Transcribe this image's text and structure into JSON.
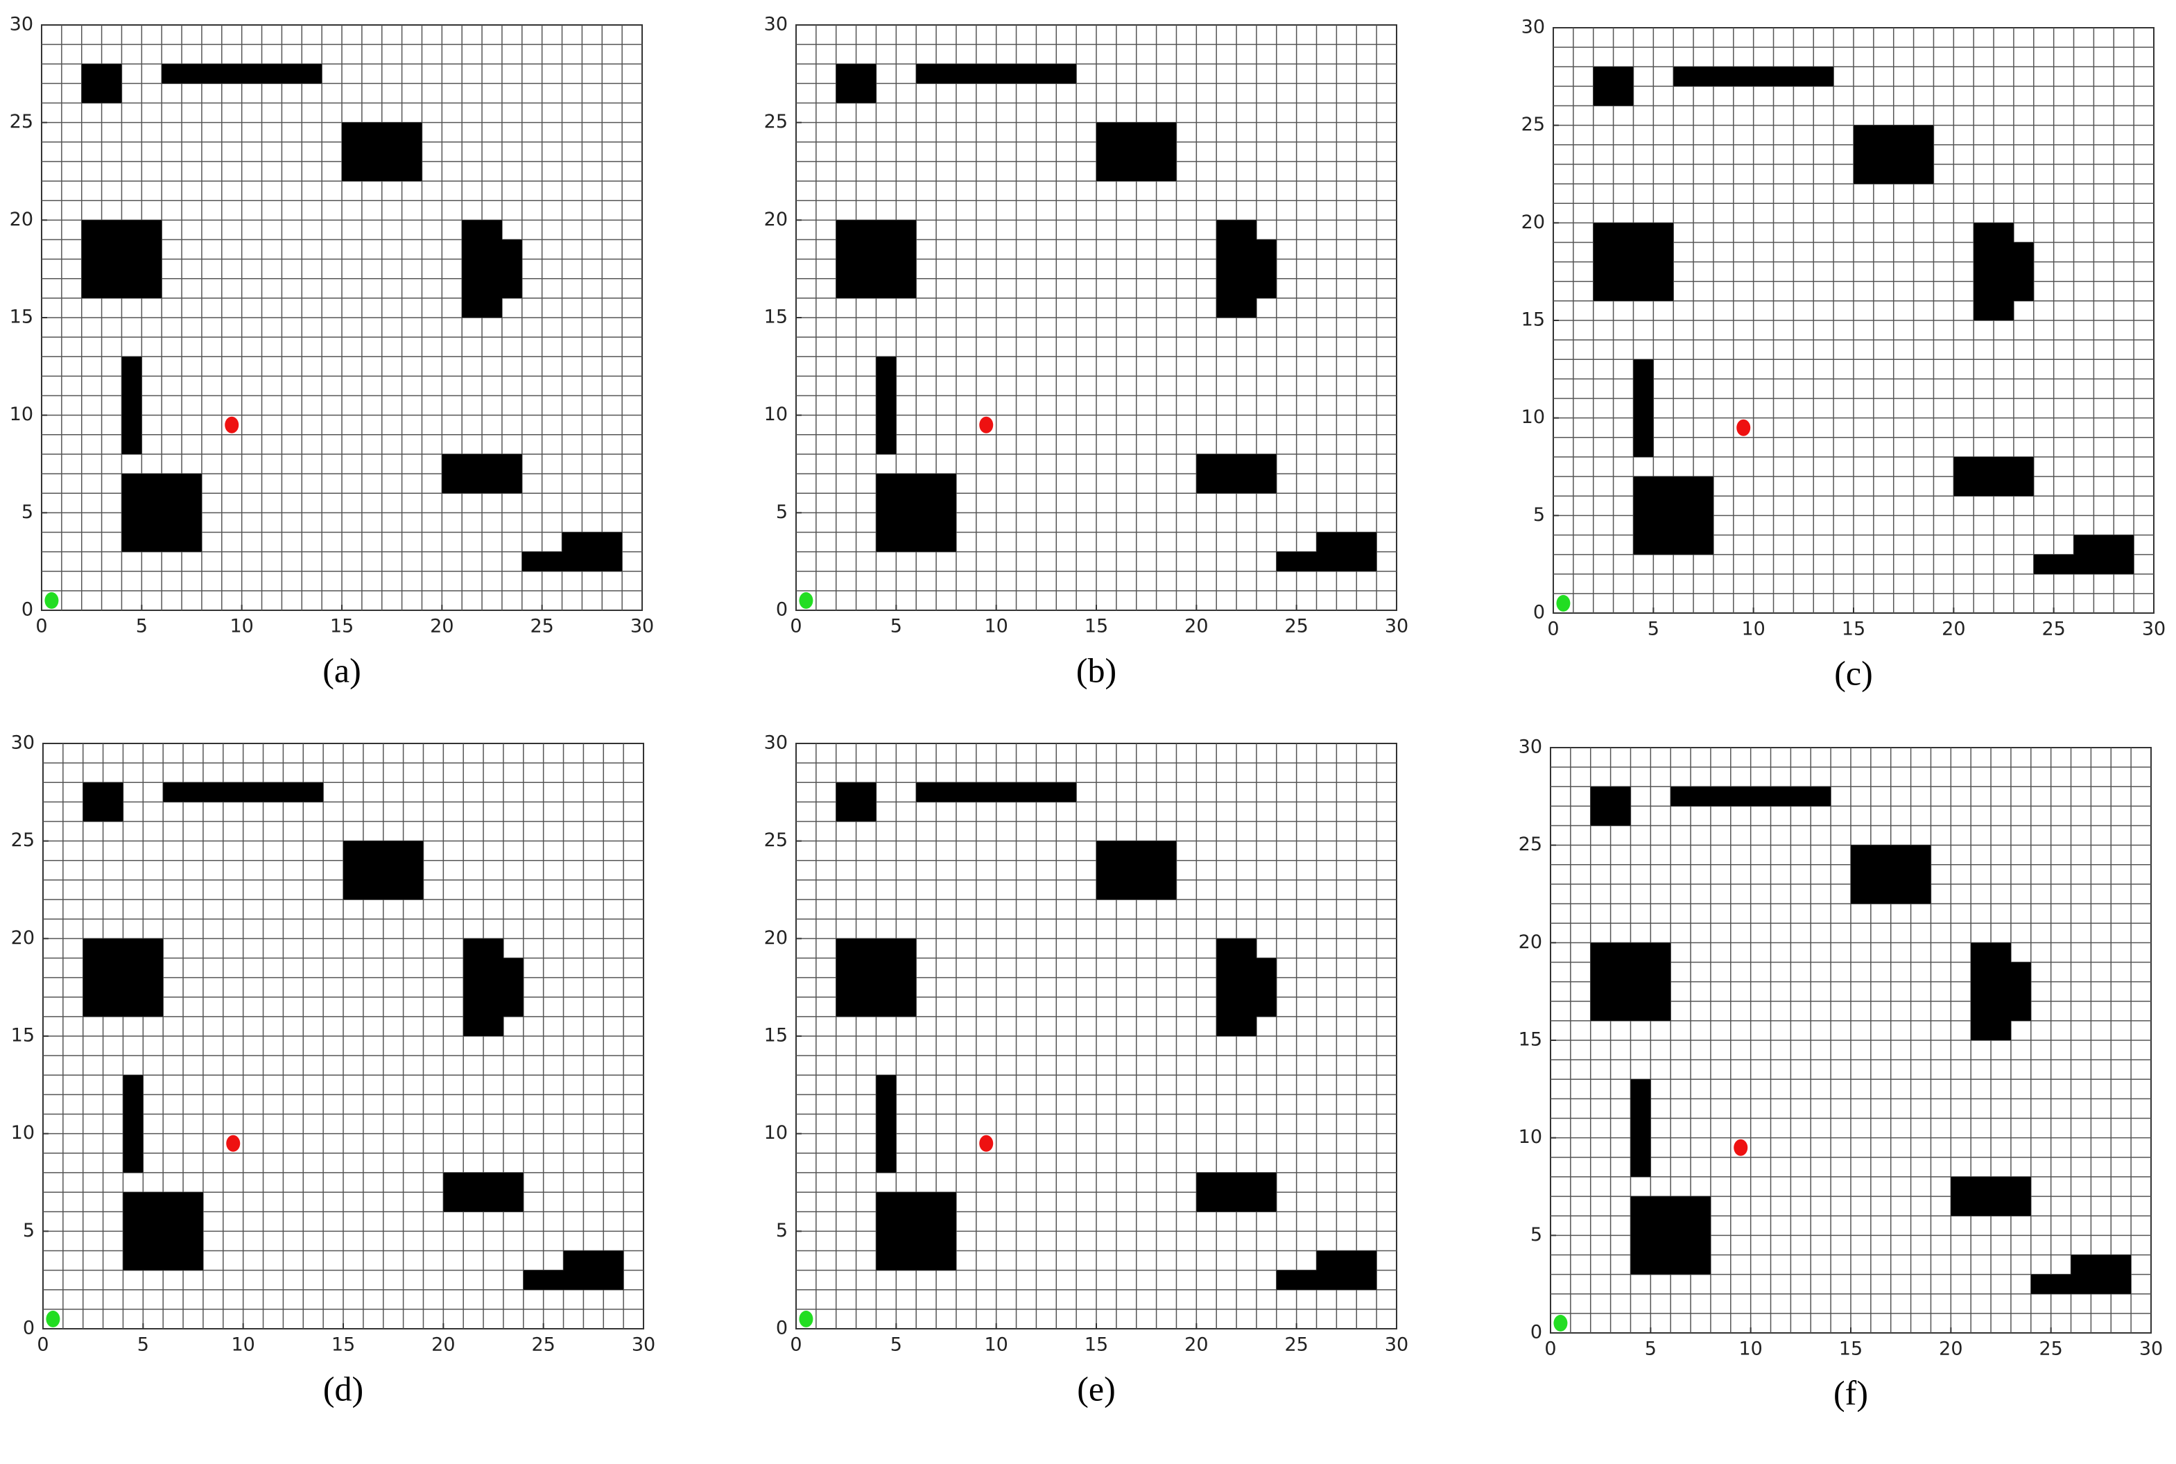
{
  "chart_data": [
    {
      "type": "grid_map",
      "caption": "(a)",
      "xlim": [
        0,
        30
      ],
      "ylim": [
        0,
        30
      ],
      "xticks": [
        0,
        5,
        10,
        15,
        20,
        25,
        30
      ],
      "yticks": [
        0,
        5,
        10,
        15,
        20,
        25,
        30
      ],
      "grid": true,
      "obstacle_color": "#000000",
      "obstacles": [
        [
          [
            2,
            26
          ],
          [
            4,
            26
          ],
          [
            4,
            28
          ],
          [
            2,
            28
          ]
        ],
        [
          [
            6,
            27
          ],
          [
            14,
            27
          ],
          [
            14,
            28
          ],
          [
            6,
            28
          ]
        ],
        [
          [
            15,
            22
          ],
          [
            19,
            22
          ],
          [
            19,
            25
          ],
          [
            15,
            25
          ]
        ],
        [
          [
            2,
            16
          ],
          [
            6,
            16
          ],
          [
            6,
            20
          ],
          [
            2,
            20
          ]
        ],
        [
          [
            21,
            15
          ],
          [
            21,
            20
          ],
          [
            23,
            20
          ],
          [
            23,
            19
          ],
          [
            24,
            19
          ],
          [
            24,
            16
          ],
          [
            23,
            16
          ],
          [
            23,
            15
          ]
        ],
        [
          [
            4,
            8
          ],
          [
            5,
            8
          ],
          [
            5,
            13
          ],
          [
            4,
            13
          ]
        ],
        [
          [
            4,
            3
          ],
          [
            8,
            3
          ],
          [
            8,
            7
          ],
          [
            4,
            7
          ]
        ],
        [
          [
            20,
            6
          ],
          [
            24,
            6
          ],
          [
            24,
            8
          ],
          [
            20,
            8
          ]
        ],
        [
          [
            24,
            2
          ],
          [
            29,
            2
          ],
          [
            29,
            4
          ],
          [
            26,
            4
          ],
          [
            26,
            3
          ],
          [
            24,
            3
          ]
        ]
      ],
      "start": [
        0.5,
        0.5
      ],
      "start_color": "#22dd22",
      "goal": [
        9.5,
        9.5
      ],
      "goal_color": "#ee1111"
    },
    {
      "type": "grid_map",
      "caption": "(b)",
      "xlim": [
        0,
        30
      ],
      "ylim": [
        0,
        30
      ],
      "xticks": [
        0,
        5,
        10,
        15,
        20,
        25,
        30
      ],
      "yticks": [
        0,
        5,
        10,
        15,
        20,
        25,
        30
      ],
      "grid": true,
      "obstacle_color": "#000000",
      "obstacles": [
        [
          [
            2,
            26
          ],
          [
            4,
            26
          ],
          [
            4,
            28
          ],
          [
            2,
            28
          ]
        ],
        [
          [
            6,
            27
          ],
          [
            14,
            27
          ],
          [
            14,
            28
          ],
          [
            6,
            28
          ]
        ],
        [
          [
            15,
            22
          ],
          [
            19,
            22
          ],
          [
            19,
            25
          ],
          [
            15,
            25
          ]
        ],
        [
          [
            2,
            16
          ],
          [
            6,
            16
          ],
          [
            6,
            20
          ],
          [
            2,
            20
          ]
        ],
        [
          [
            21,
            15
          ],
          [
            21,
            20
          ],
          [
            23,
            20
          ],
          [
            23,
            19
          ],
          [
            24,
            19
          ],
          [
            24,
            16
          ],
          [
            23,
            16
          ],
          [
            23,
            15
          ]
        ],
        [
          [
            4,
            8
          ],
          [
            5,
            8
          ],
          [
            5,
            13
          ],
          [
            4,
            13
          ]
        ],
        [
          [
            4,
            3
          ],
          [
            8,
            3
          ],
          [
            8,
            7
          ],
          [
            4,
            7
          ]
        ],
        [
          [
            20,
            6
          ],
          [
            24,
            6
          ],
          [
            24,
            8
          ],
          [
            20,
            8
          ]
        ],
        [
          [
            24,
            2
          ],
          [
            29,
            2
          ],
          [
            29,
            4
          ],
          [
            26,
            4
          ],
          [
            26,
            3
          ],
          [
            24,
            3
          ]
        ]
      ],
      "start": [
        0.5,
        0.5
      ],
      "start_color": "#22dd22",
      "goal": [
        9.5,
        9.5
      ],
      "goal_color": "#ee1111"
    },
    {
      "type": "grid_map",
      "caption": "(c)",
      "xlim": [
        0,
        30
      ],
      "ylim": [
        0,
        30
      ],
      "xticks": [
        0,
        5,
        10,
        15,
        20,
        25,
        30
      ],
      "yticks": [
        0,
        5,
        10,
        15,
        20,
        25,
        30
      ],
      "grid": true,
      "obstacle_color": "#000000",
      "obstacles": [
        [
          [
            2,
            26
          ],
          [
            4,
            26
          ],
          [
            4,
            28
          ],
          [
            2,
            28
          ]
        ],
        [
          [
            6,
            27
          ],
          [
            14,
            27
          ],
          [
            14,
            28
          ],
          [
            6,
            28
          ]
        ],
        [
          [
            15,
            22
          ],
          [
            19,
            22
          ],
          [
            19,
            25
          ],
          [
            15,
            25
          ]
        ],
        [
          [
            2,
            16
          ],
          [
            6,
            16
          ],
          [
            6,
            20
          ],
          [
            2,
            20
          ]
        ],
        [
          [
            21,
            15
          ],
          [
            21,
            20
          ],
          [
            23,
            20
          ],
          [
            23,
            19
          ],
          [
            24,
            19
          ],
          [
            24,
            16
          ],
          [
            23,
            16
          ],
          [
            23,
            15
          ]
        ],
        [
          [
            4,
            8
          ],
          [
            5,
            8
          ],
          [
            5,
            13
          ],
          [
            4,
            13
          ]
        ],
        [
          [
            4,
            3
          ],
          [
            8,
            3
          ],
          [
            8,
            7
          ],
          [
            4,
            7
          ]
        ],
        [
          [
            20,
            6
          ],
          [
            24,
            6
          ],
          [
            24,
            8
          ],
          [
            20,
            8
          ]
        ],
        [
          [
            24,
            2
          ],
          [
            29,
            2
          ],
          [
            29,
            4
          ],
          [
            26,
            4
          ],
          [
            26,
            3
          ],
          [
            24,
            3
          ]
        ]
      ],
      "start": [
        0.5,
        0.5
      ],
      "start_color": "#22dd22",
      "goal": [
        9.5,
        9.5
      ],
      "goal_color": "#ee1111"
    },
    {
      "type": "grid_map",
      "caption": "(d)",
      "xlim": [
        0,
        30
      ],
      "ylim": [
        0,
        30
      ],
      "xticks": [
        0,
        5,
        10,
        15,
        20,
        25,
        30
      ],
      "yticks": [
        0,
        5,
        10,
        15,
        20,
        25,
        30
      ],
      "grid": true,
      "obstacle_color": "#000000",
      "obstacles": [
        [
          [
            2,
            26
          ],
          [
            4,
            26
          ],
          [
            4,
            28
          ],
          [
            2,
            28
          ]
        ],
        [
          [
            6,
            27
          ],
          [
            14,
            27
          ],
          [
            14,
            28
          ],
          [
            6,
            28
          ]
        ],
        [
          [
            15,
            22
          ],
          [
            19,
            22
          ],
          [
            19,
            25
          ],
          [
            15,
            25
          ]
        ],
        [
          [
            2,
            16
          ],
          [
            6,
            16
          ],
          [
            6,
            20
          ],
          [
            2,
            20
          ]
        ],
        [
          [
            21,
            15
          ],
          [
            21,
            20
          ],
          [
            23,
            20
          ],
          [
            23,
            19
          ],
          [
            24,
            19
          ],
          [
            24,
            16
          ],
          [
            23,
            16
          ],
          [
            23,
            15
          ]
        ],
        [
          [
            4,
            8
          ],
          [
            5,
            8
          ],
          [
            5,
            13
          ],
          [
            4,
            13
          ]
        ],
        [
          [
            4,
            3
          ],
          [
            8,
            3
          ],
          [
            8,
            7
          ],
          [
            4,
            7
          ]
        ],
        [
          [
            20,
            6
          ],
          [
            24,
            6
          ],
          [
            24,
            8
          ],
          [
            20,
            8
          ]
        ],
        [
          [
            24,
            2
          ],
          [
            29,
            2
          ],
          [
            29,
            4
          ],
          [
            26,
            4
          ],
          [
            26,
            3
          ],
          [
            24,
            3
          ]
        ]
      ],
      "start": [
        0.5,
        0.5
      ],
      "start_color": "#22dd22",
      "goal": [
        9.5,
        9.5
      ],
      "goal_color": "#ee1111"
    },
    {
      "type": "grid_map",
      "caption": "(e)",
      "xlim": [
        0,
        30
      ],
      "ylim": [
        0,
        30
      ],
      "xticks": [
        0,
        5,
        10,
        15,
        20,
        25,
        30
      ],
      "yticks": [
        0,
        5,
        10,
        15,
        20,
        25,
        30
      ],
      "grid": true,
      "obstacle_color": "#000000",
      "obstacles": [
        [
          [
            2,
            26
          ],
          [
            4,
            26
          ],
          [
            4,
            28
          ],
          [
            2,
            28
          ]
        ],
        [
          [
            6,
            27
          ],
          [
            14,
            27
          ],
          [
            14,
            28
          ],
          [
            6,
            28
          ]
        ],
        [
          [
            15,
            22
          ],
          [
            19,
            22
          ],
          [
            19,
            25
          ],
          [
            15,
            25
          ]
        ],
        [
          [
            2,
            16
          ],
          [
            6,
            16
          ],
          [
            6,
            20
          ],
          [
            2,
            20
          ]
        ],
        [
          [
            21,
            15
          ],
          [
            21,
            20
          ],
          [
            23,
            20
          ],
          [
            23,
            19
          ],
          [
            24,
            19
          ],
          [
            24,
            16
          ],
          [
            23,
            16
          ],
          [
            23,
            15
          ]
        ],
        [
          [
            4,
            8
          ],
          [
            5,
            8
          ],
          [
            5,
            13
          ],
          [
            4,
            13
          ]
        ],
        [
          [
            4,
            3
          ],
          [
            8,
            3
          ],
          [
            8,
            7
          ],
          [
            4,
            7
          ]
        ],
        [
          [
            20,
            6
          ],
          [
            24,
            6
          ],
          [
            24,
            8
          ],
          [
            20,
            8
          ]
        ],
        [
          [
            24,
            2
          ],
          [
            29,
            2
          ],
          [
            29,
            4
          ],
          [
            26,
            4
          ],
          [
            26,
            3
          ],
          [
            24,
            3
          ]
        ]
      ],
      "start": [
        0.5,
        0.5
      ],
      "start_color": "#22dd22",
      "goal": [
        9.5,
        9.5
      ],
      "goal_color": "#ee1111"
    },
    {
      "type": "grid_map",
      "caption": "(f)",
      "xlim": [
        0,
        30
      ],
      "ylim": [
        0,
        30
      ],
      "xticks": [
        0,
        5,
        10,
        15,
        20,
        25,
        30
      ],
      "yticks": [
        0,
        5,
        10,
        15,
        20,
        25,
        30
      ],
      "grid": true,
      "obstacle_color": "#000000",
      "obstacles": [
        [
          [
            2,
            26
          ],
          [
            4,
            26
          ],
          [
            4,
            28
          ],
          [
            2,
            28
          ]
        ],
        [
          [
            6,
            27
          ],
          [
            14,
            27
          ],
          [
            14,
            28
          ],
          [
            6,
            28
          ]
        ],
        [
          [
            15,
            22
          ],
          [
            19,
            22
          ],
          [
            19,
            25
          ],
          [
            15,
            25
          ]
        ],
        [
          [
            2,
            16
          ],
          [
            6,
            16
          ],
          [
            6,
            20
          ],
          [
            2,
            20
          ]
        ],
        [
          [
            21,
            15
          ],
          [
            21,
            20
          ],
          [
            23,
            20
          ],
          [
            23,
            19
          ],
          [
            24,
            19
          ],
          [
            24,
            16
          ],
          [
            23,
            16
          ],
          [
            23,
            15
          ]
        ],
        [
          [
            4,
            8
          ],
          [
            5,
            8
          ],
          [
            5,
            13
          ],
          [
            4,
            13
          ]
        ],
        [
          [
            4,
            3
          ],
          [
            8,
            3
          ],
          [
            8,
            7
          ],
          [
            4,
            7
          ]
        ],
        [
          [
            20,
            6
          ],
          [
            24,
            6
          ],
          [
            24,
            8
          ],
          [
            20,
            8
          ]
        ],
        [
          [
            24,
            2
          ],
          [
            29,
            2
          ],
          [
            29,
            4
          ],
          [
            26,
            4
          ],
          [
            26,
            3
          ],
          [
            24,
            3
          ]
        ]
      ],
      "start": [
        0.5,
        0.5
      ],
      "start_color": "#22dd22",
      "goal": [
        9.5,
        9.5
      ],
      "goal_color": "#ee1111"
    }
  ]
}
